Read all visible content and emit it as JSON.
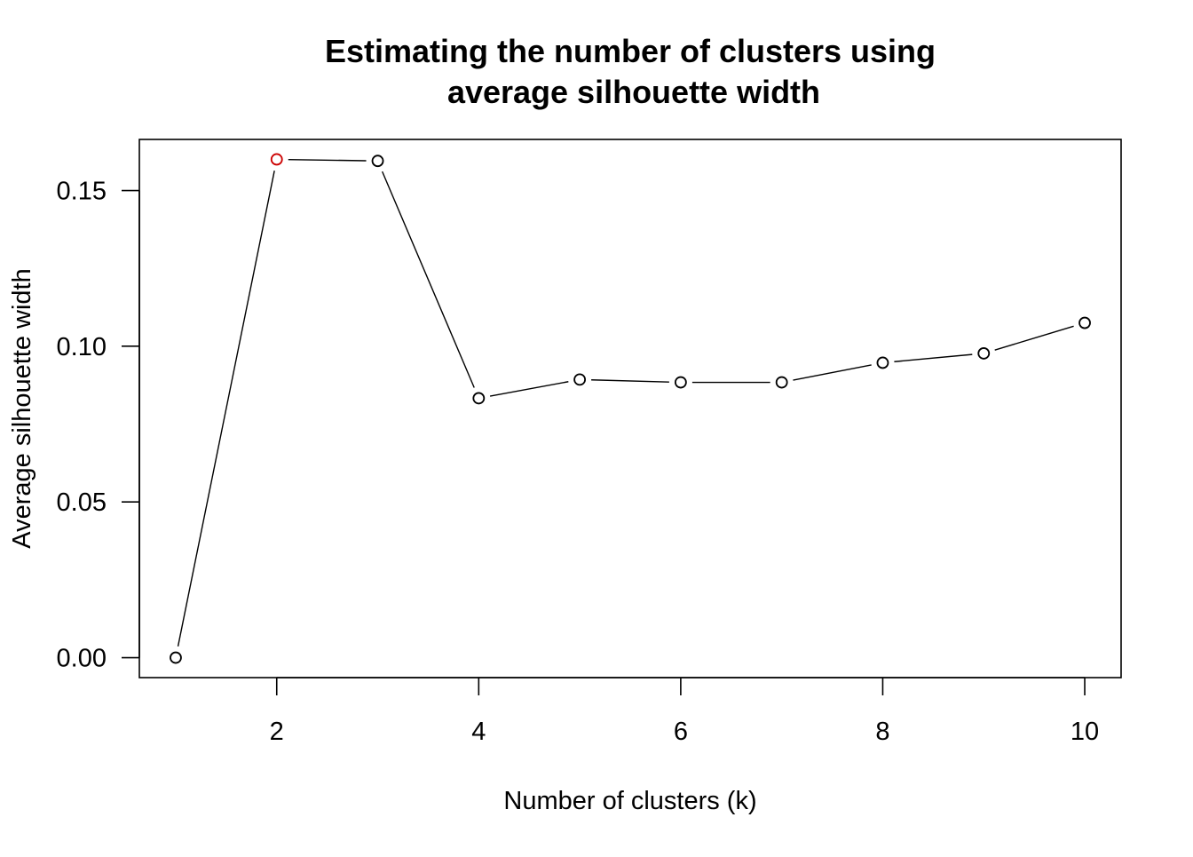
{
  "chart_data": {
    "type": "line",
    "title": [
      "Estimating the number of clusters using",
      "average silhouette width"
    ],
    "xlabel": "Number of clusters (k)",
    "ylabel": "Average silhouette width",
    "x": [
      1,
      2,
      3,
      4,
      5,
      6,
      7,
      8,
      9,
      10
    ],
    "y": [
      0.0,
      0.16,
      0.1595,
      0.0833,
      0.0893,
      0.0884,
      0.0884,
      0.0947,
      0.0977,
      0.1075
    ],
    "highlight_x": 2,
    "highlight_color": "#cc0000",
    "point_color": "#000000",
    "line_color": "#000000",
    "xlim": [
      0.64,
      10.36
    ],
    "ylim": [
      -0.0064,
      0.1664
    ],
    "xticks": [
      2,
      4,
      6,
      8,
      10
    ],
    "xtick_labels": [
      "2",
      "4",
      "6",
      "8",
      "10"
    ],
    "yticks": [
      0.0,
      0.05,
      0.1,
      0.15
    ],
    "ytick_labels": [
      "0.00",
      "0.05",
      "0.10",
      "0.15"
    ],
    "grid": false,
    "legend": "none"
  }
}
